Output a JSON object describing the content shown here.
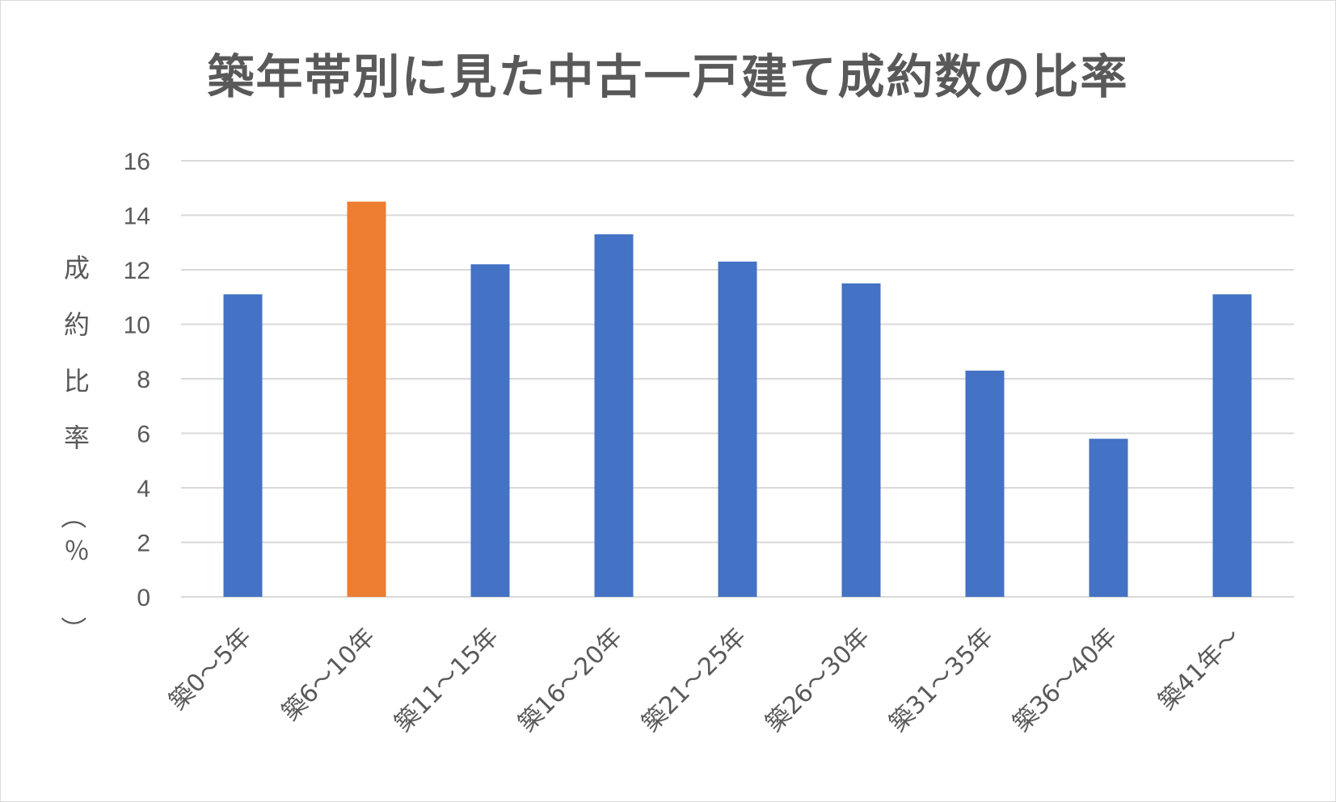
{
  "chart_data": {
    "type": "bar",
    "title": "築年帯別に見た中古一戸建て成約数の比率",
    "ylabel": "成約比率（％）",
    "categories": [
      "築0～5年",
      "築6～10年",
      "築11～15年",
      "築16～20年",
      "築21～25年",
      "築26～30年",
      "築31～35年",
      "築36～40年",
      "築41年～"
    ],
    "values": [
      11.1,
      14.5,
      12.2,
      13.3,
      12.3,
      11.5,
      8.3,
      5.8,
      11.1
    ],
    "ylim": [
      0,
      16
    ],
    "yticks": [
      0,
      2,
      4,
      6,
      8,
      10,
      12,
      14,
      16
    ],
    "grid": true,
    "highlight_index": 1,
    "colors": {
      "bar": "#4472c4",
      "highlight": "#ed7d31",
      "grid": "#d9d9d9",
      "text": "#595959"
    }
  }
}
